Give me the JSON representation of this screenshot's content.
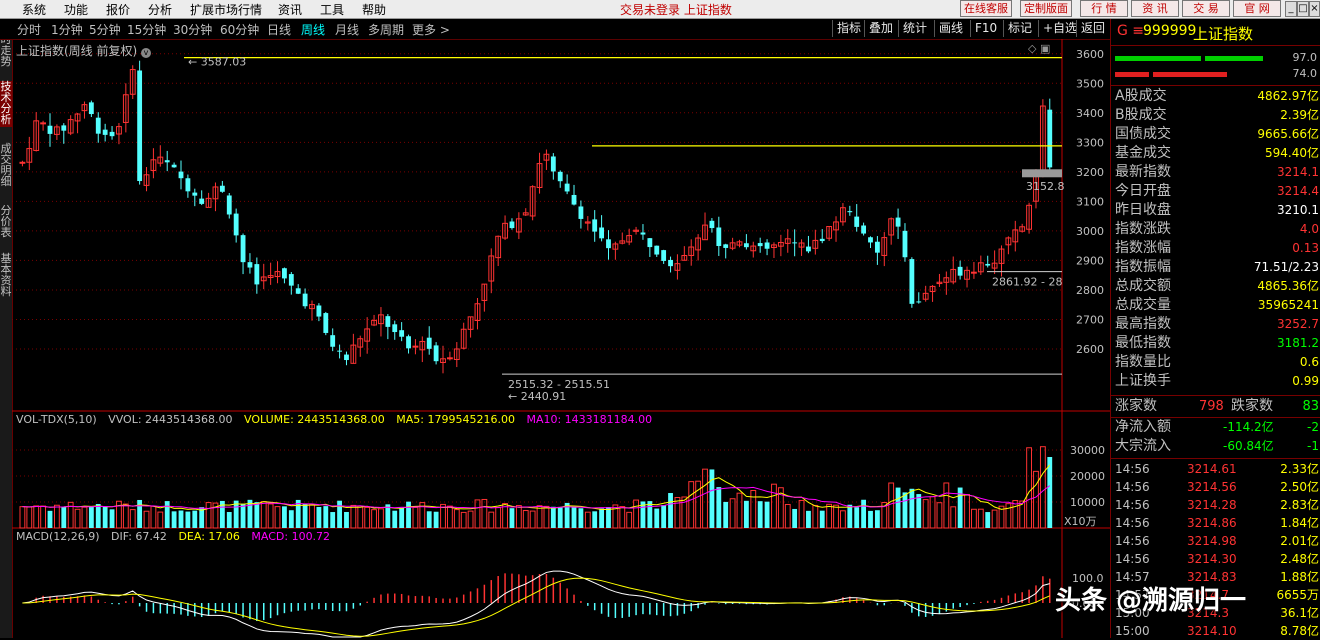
{
  "menubar": {
    "items": [
      "系统",
      "功能",
      "报价",
      "分析",
      "扩展市场行情",
      "资讯",
      "工具",
      "帮助"
    ],
    "center_text": "交易未登录  上证指数",
    "buttons": [
      "在线客服",
      "定制版面"
    ]
  },
  "quick_buttons": [
    "行",
    "情",
    "资",
    "讯",
    "交",
    "易",
    "官",
    "网"
  ],
  "window_controls": [
    "_",
    "□",
    "×"
  ],
  "toolbar": {
    "periods": [
      "分时",
      "1分钟",
      "5分钟",
      "15分钟",
      "30分钟",
      "60分钟",
      "日线",
      "周线",
      "月线",
      "多周期",
      "更多"
    ],
    "active_period": "周线",
    "more_arrow": ">",
    "right_buttons": [
      "指标",
      "叠加",
      "统计",
      "画线",
      "F10",
      "标记",
      "+自选",
      "返回"
    ]
  },
  "sidebar": {
    "tabs": [
      "分时走势",
      "技术分析",
      "成交明细",
      "分价表",
      "基本资料"
    ],
    "active_tab": "技术分析"
  },
  "main_chart": {
    "title": "上证指数(周线 前复权)",
    "price_axis_ticks": [
      "3600",
      "3500",
      "3400",
      "3300",
      "3200",
      "3100",
      "3000",
      "2900",
      "2800",
      "2700",
      "2600"
    ],
    "annotations": {
      "high": "3587.03",
      "low": "2440.91",
      "low_range": "2515.32 - 2515.51",
      "mid_range": "2861.92 - 28",
      "last_box": "3152.8"
    },
    "colors": {
      "up": "#ff3333",
      "down": "#54ffff",
      "ma": "#ffff00",
      "ma2": "#ff00ff",
      "grid": "#7a0000",
      "axis": "#c00000"
    }
  },
  "volume_panel": {
    "indicator": "VOL-TDX(5,10)",
    "vvol": "VVOL: 2443514368.00",
    "volume": "VOLUME: 2443514368.00",
    "ma5": "MA5: 1799545216.00",
    "ma10": "MA10: 1433181184.00",
    "axis_ticks": [
      "30000",
      "20000",
      "10000"
    ],
    "unit": "X10万"
  },
  "macd_panel": {
    "indicator": "MACD(12,26,9)",
    "dif": "DIF: 67.42",
    "dea": "DEA: 17.06",
    "macd": "MACD: 100.72",
    "axis_ticks": [
      "100.0",
      "0.00"
    ]
  },
  "right_panel": {
    "code_prefix": "G ≡",
    "code": "999999",
    "name": "上证指数",
    "bar_values": [
      "97.0",
      "74.0"
    ],
    "stats": [
      {
        "label": "A股成交",
        "value": "4862.97亿",
        "color": "#ffff00"
      },
      {
        "label": "B股成交",
        "value": "2.39亿",
        "color": "#ffff00"
      },
      {
        "label": "国债成交",
        "value": "9665.66亿",
        "color": "#ffff00"
      },
      {
        "label": "基金成交",
        "value": "594.40亿",
        "color": "#ffff00"
      },
      {
        "label": "最新指数",
        "value": "3214.1",
        "color": "#ff3333"
      },
      {
        "label": "今日开盘",
        "value": "3214.4",
        "color": "#ff3333"
      },
      {
        "label": "昨日收盘",
        "value": "3210.1",
        "color": "#ffffff"
      },
      {
        "label": "指数涨跌",
        "value": "4.0",
        "color": "#ff3333"
      },
      {
        "label": "指数涨幅",
        "value": "0.13",
        "color": "#ff3333"
      },
      {
        "label": "指数振幅",
        "value": "71.51/2.23",
        "color": "#ffffff"
      },
      {
        "label": "总成交额",
        "value": "4865.36亿",
        "color": "#ffff00"
      },
      {
        "label": "总成交量",
        "value": "35965241",
        "color": "#ffff00"
      },
      {
        "label": "最高指数",
        "value": "3252.7",
        "color": "#ff3333"
      },
      {
        "label": "最低指数",
        "value": "3181.2",
        "color": "#00ff00"
      },
      {
        "label": "指数量比",
        "value": "0.6",
        "color": "#ffff00"
      },
      {
        "label": "上证换手",
        "value": "0.99",
        "color": "#ffff00"
      }
    ],
    "up_label": "涨家数",
    "up_count": "798",
    "down_label": "跌家数",
    "down_count": "83",
    "flows": [
      {
        "label": "净流入额",
        "value": "-114.2亿",
        "extra": "-2"
      },
      {
        "label": "大宗流入",
        "value": "-60.84亿",
        "extra": "-1"
      }
    ],
    "ticks": [
      {
        "time": "14:56",
        "price": "3214.61",
        "vol": "2.33亿"
      },
      {
        "time": "14:56",
        "price": "3214.56",
        "vol": "2.50亿"
      },
      {
        "time": "14:56",
        "price": "3214.28",
        "vol": "2.83亿"
      },
      {
        "time": "14:56",
        "price": "3214.86",
        "vol": "1.84亿"
      },
      {
        "time": "14:56",
        "price": "3214.98",
        "vol": "2.01亿"
      },
      {
        "time": "14:56",
        "price": "3214.30",
        "vol": "2.48亿"
      },
      {
        "time": "14:57",
        "price": "3214.83",
        "vol": "1.88亿"
      },
      {
        "time": "14:57",
        "price": "3214.7",
        "vol": "6655万"
      },
      {
        "time": "15:00",
        "price": "3214.3",
        "vol": "36.1亿"
      },
      {
        "time": "15:00",
        "price": "3214.10",
        "vol": "8.78亿"
      }
    ]
  },
  "watermark": "头条 @溯源归一"
}
